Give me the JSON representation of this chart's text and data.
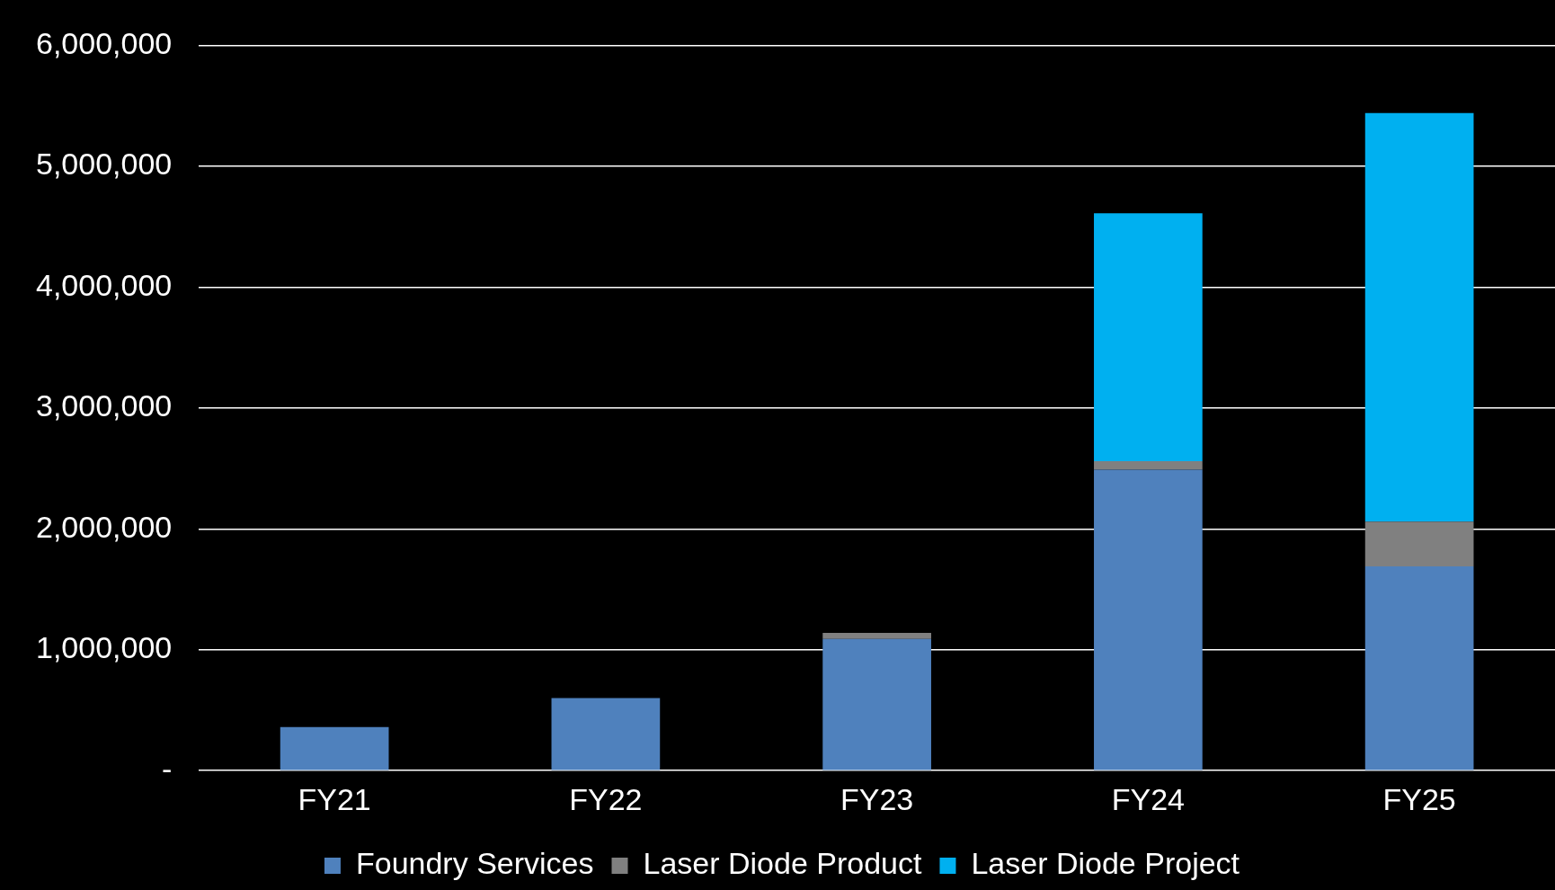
{
  "chart_data": {
    "type": "bar",
    "stacked": true,
    "categories": [
      "FY21",
      "FY22",
      "FY23",
      "FY24",
      "FY25"
    ],
    "series": [
      {
        "name": "Foundry Services",
        "color": "#4f81bd",
        "values": [
          360000,
          600000,
          1090000,
          2490000,
          1690000
        ]
      },
      {
        "name": "Laser Diode Product",
        "color": "#808080",
        "values": [
          0,
          0,
          50000,
          70000,
          370000
        ]
      },
      {
        "name": "Laser Diode Project",
        "color": "#00b0f0",
        "values": [
          0,
          0,
          0,
          2050000,
          3380000
        ]
      }
    ],
    "ylim": [
      0,
      6000000
    ],
    "yticks": [
      {
        "value": 0,
        "label": "-"
      },
      {
        "value": 1000000,
        "label": "1,000,000"
      },
      {
        "value": 2000000,
        "label": "2,000,000"
      },
      {
        "value": 3000000,
        "label": "3,000,000"
      },
      {
        "value": 4000000,
        "label": "4,000,000"
      },
      {
        "value": 5000000,
        "label": "5,000,000"
      },
      {
        "value": 6000000,
        "label": "6,000,000"
      }
    ],
    "grid": "y",
    "legend": "bottom"
  }
}
